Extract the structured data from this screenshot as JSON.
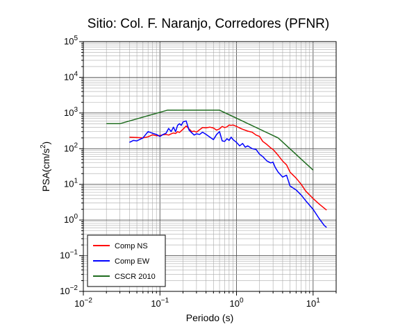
{
  "chart_data": {
    "type": "line",
    "title": "Sitio: Col. F. Naranjo, Corredores (PFNR)",
    "xlabel": "Periodo (s)",
    "ylabel_main": "PSA(cm/s",
    "ylabel_exp": "2",
    "ylabel_close": ")",
    "xscale": "log",
    "yscale": "log",
    "xlim": [
      0.01,
      20
    ],
    "ylim": [
      0.01,
      100000
    ],
    "grid": true,
    "legend_position": "bottom-left",
    "x_ticks": [
      {
        "value": 0.01,
        "base": "10",
        "exp": "−2"
      },
      {
        "value": 0.1,
        "base": "10",
        "exp": "−1"
      },
      {
        "value": 1,
        "base": "10",
        "exp": "0"
      },
      {
        "value": 10,
        "base": "10",
        "exp": "1"
      }
    ],
    "y_ticks": [
      {
        "value": 0.01,
        "base": "10",
        "exp": "−2"
      },
      {
        "value": 0.1,
        "base": "10",
        "exp": "−1"
      },
      {
        "value": 1,
        "base": "10",
        "exp": "0"
      },
      {
        "value": 10,
        "base": "10",
        "exp": "1"
      },
      {
        "value": 100,
        "base": "10",
        "exp": "2"
      },
      {
        "value": 1000,
        "base": "10",
        "exp": "3"
      },
      {
        "value": 10000,
        "base": "10",
        "exp": "4"
      },
      {
        "value": 100000,
        "base": "10",
        "exp": "5"
      }
    ],
    "series": [
      {
        "name": "Comp NS",
        "color": "#ff0000",
        "x": [
          0.04,
          0.05,
          0.06,
          0.07,
          0.08,
          0.09,
          0.1,
          0.11,
          0.12,
          0.13,
          0.14,
          0.15,
          0.16,
          0.17,
          0.18,
          0.2,
          0.22,
          0.24,
          0.26,
          0.28,
          0.3,
          0.33,
          0.36,
          0.4,
          0.45,
          0.5,
          0.55,
          0.6,
          0.65,
          0.7,
          0.75,
          0.8,
          0.85,
          0.9,
          1.0,
          1.1,
          1.2,
          1.4,
          1.6,
          1.8,
          2.0,
          2.2,
          2.5,
          2.8,
          3.0,
          3.5,
          4.0,
          4.5,
          5.0,
          6.0,
          7.0,
          8.0,
          10.0,
          12.0,
          15.0
        ],
        "y": [
          210,
          205,
          200,
          215,
          245,
          230,
          235,
          245,
          250,
          240,
          260,
          275,
          265,
          300,
          285,
          350,
          430,
          360,
          300,
          310,
          290,
          340,
          390,
          385,
          400,
          380,
          330,
          360,
          420,
          390,
          410,
          460,
          450,
          460,
          420,
          380,
          350,
          310,
          290,
          240,
          220,
          160,
          130,
          105,
          95,
          65,
          45,
          35,
          22,
          15,
          10,
          6.5,
          4.0,
          2.8,
          1.9
        ]
      },
      {
        "name": "Comp EW",
        "color": "#0000ff",
        "x": [
          0.04,
          0.045,
          0.05,
          0.06,
          0.07,
          0.08,
          0.09,
          0.1,
          0.11,
          0.12,
          0.13,
          0.14,
          0.15,
          0.16,
          0.17,
          0.18,
          0.19,
          0.2,
          0.22,
          0.24,
          0.26,
          0.28,
          0.3,
          0.33,
          0.36,
          0.4,
          0.45,
          0.5,
          0.55,
          0.6,
          0.65,
          0.7,
          0.75,
          0.8,
          0.85,
          0.9,
          1.0,
          1.1,
          1.2,
          1.3,
          1.4,
          1.6,
          1.8,
          2.0,
          2.2,
          2.5,
          2.8,
          3.0,
          3.2,
          3.5,
          4.0,
          4.5,
          5.0,
          6.0,
          7.0,
          8.0,
          10.0,
          12.0,
          14.0,
          15.0
        ],
        "y": [
          150,
          170,
          165,
          200,
          300,
          270,
          250,
          220,
          250,
          270,
          370,
          300,
          400,
          300,
          450,
          500,
          450,
          560,
          600,
          330,
          280,
          240,
          260,
          250,
          290,
          250,
          210,
          180,
          250,
          300,
          165,
          160,
          190,
          170,
          210,
          180,
          150,
          120,
          140,
          110,
          120,
          100,
          95,
          70,
          60,
          45,
          40,
          42,
          30,
          22,
          16,
          18,
          9,
          7,
          5,
          3.5,
          2.0,
          1.1,
          0.7,
          0.62
        ]
      },
      {
        "name": "CSCR 2010",
        "color": "#1e6b1e",
        "x": [
          0.02,
          0.03,
          0.125,
          0.6,
          3.5,
          10
        ],
        "y": [
          500,
          500,
          1200,
          1200,
          200,
          25
        ]
      }
    ]
  }
}
